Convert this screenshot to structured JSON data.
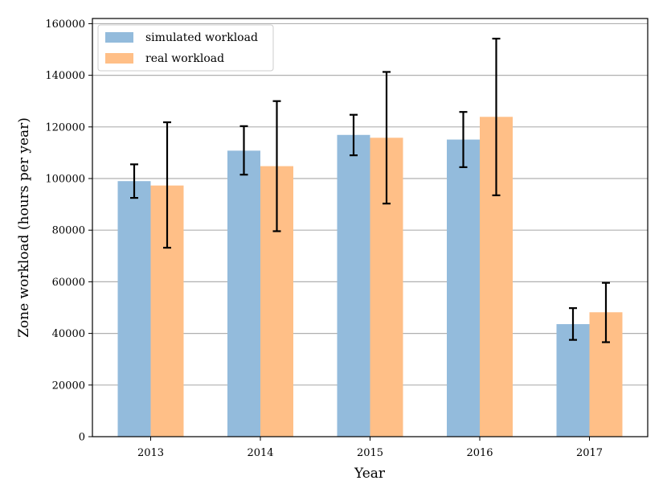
{
  "chart_data": {
    "type": "bar",
    "title": "",
    "xlabel": "Year",
    "ylabel": "Zone workload (hours per year)",
    "categories": [
      "2013",
      "2014",
      "2015",
      "2016",
      "2017"
    ],
    "series": [
      {
        "name": "simulated workload",
        "color": "#93bbdc",
        "values": [
          99000,
          110800,
          116900,
          115100,
          43600
        ],
        "err_low": [
          92500,
          101500,
          109000,
          104400,
          37500
        ],
        "err_high": [
          105500,
          120300,
          124700,
          125800,
          49800
        ]
      },
      {
        "name": "real workload",
        "color": "#ffbf87",
        "values": [
          97300,
          104800,
          115800,
          123900,
          48200
        ],
        "err_low": [
          73200,
          79600,
          90300,
          93500,
          36600
        ],
        "err_high": [
          121800,
          130000,
          141300,
          154200,
          59600
        ]
      }
    ],
    "ylim": [
      0,
      162000
    ],
    "yticks": [
      0,
      20000,
      40000,
      60000,
      80000,
      100000,
      120000,
      140000,
      160000
    ],
    "grid": "y",
    "legend_position": "top-left"
  }
}
